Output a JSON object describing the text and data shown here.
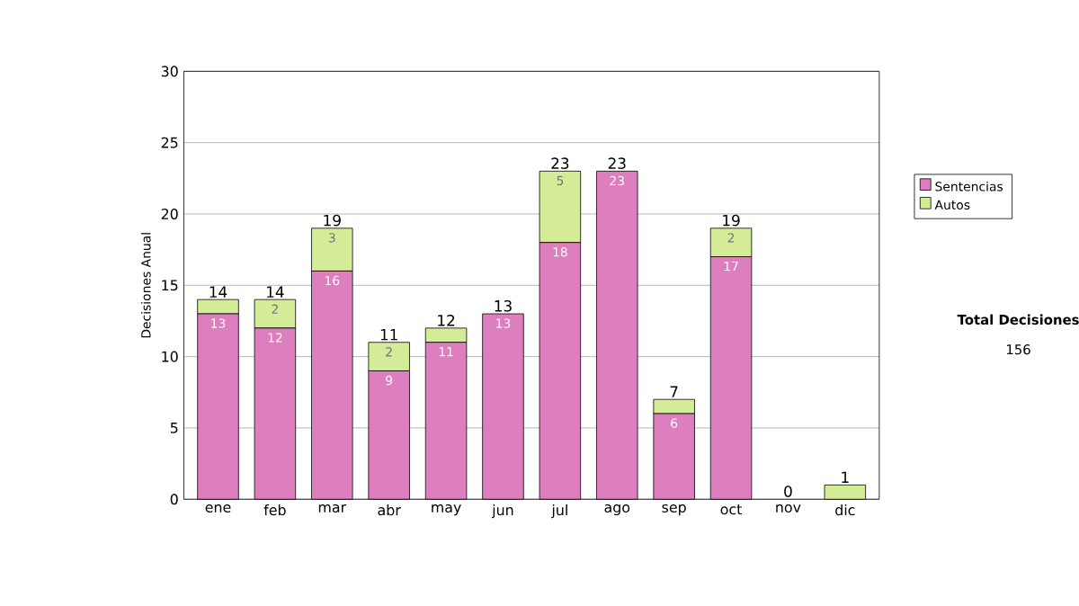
{
  "chart_data": {
    "type": "bar",
    "stacked": true,
    "ylabel": "Decisiones Anual",
    "categories": [
      "ene",
      "feb",
      "mar",
      "abr",
      "may",
      "jun",
      "jul",
      "ago",
      "sep",
      "oct",
      "nov",
      "dic"
    ],
    "series": [
      {
        "name": "Sentencias",
        "color": "#dd7fbf",
        "values": [
          13,
          12,
          16,
          9,
          11,
          13,
          18,
          23,
          6,
          17,
          0,
          0
        ],
        "value_labels": [
          "13",
          "12",
          "16",
          "9",
          "11",
          "13",
          "18",
          "23",
          "6",
          "17",
          null,
          null
        ]
      },
      {
        "name": "Autos",
        "color": "#d4ec98",
        "values": [
          1,
          2,
          3,
          2,
          1,
          0,
          5,
          0,
          1,
          2,
          0,
          1
        ],
        "value_labels": [
          null,
          "2",
          "3",
          "2",
          null,
          null,
          "5",
          null,
          null,
          "2",
          null,
          null
        ]
      }
    ],
    "totals": [
      "14",
      "14",
      "19",
      "11",
      "12",
      "13",
      "23",
      "23",
      "7",
      "19",
      "0",
      "1"
    ],
    "ylim": [
      0,
      30
    ],
    "yticks": [
      0,
      5,
      10,
      15,
      20,
      25,
      30
    ],
    "grid": "y",
    "legend": "right",
    "annotations": [
      "Total Decisiones",
      "156"
    ]
  }
}
